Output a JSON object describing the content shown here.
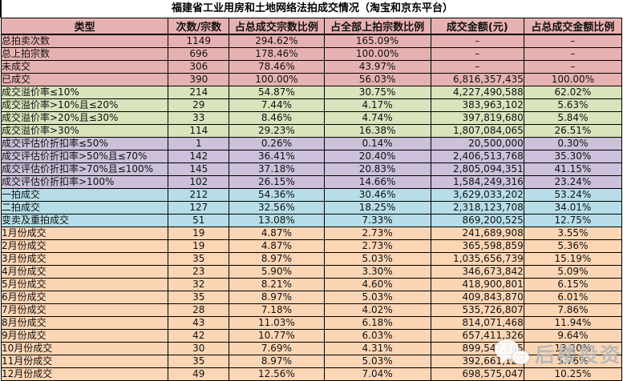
{
  "title": "福建省工业用房和土地网络法拍成交情况（淘宝和京东平台）",
  "table": {
    "columns": [
      "类型",
      "次数/宗数",
      "占总成交宗数比例",
      "占全部上拍宗数比例",
      "成交金额(元)",
      "占总成交金额比例"
    ],
    "rows": [
      {
        "label": "总拍卖次数",
        "count": "1149",
        "pct_of_deals": "294.62%",
        "pct_of_listed": "165.09%",
        "amount": "–",
        "pct_of_amount": "–",
        "group": "pink"
      },
      {
        "label": "总上拍宗数",
        "count": "696",
        "pct_of_deals": "178.46%",
        "pct_of_listed": "100.00%",
        "amount": "–",
        "pct_of_amount": "–",
        "group": "pink"
      },
      {
        "label": "未成交",
        "count": "306",
        "pct_of_deals": "78.46%",
        "pct_of_listed": "43.97%",
        "amount": "–",
        "pct_of_amount": "–",
        "group": "pink"
      },
      {
        "label": "已成交",
        "count": "390",
        "pct_of_deals": "100.00%",
        "pct_of_listed": "56.03%",
        "amount": "6,816,357,435",
        "pct_of_amount": "100.00%",
        "group": "pink"
      },
      {
        "label": "成交溢价率≤10%",
        "count": "214",
        "pct_of_deals": "54.87%",
        "pct_of_listed": "30.75%",
        "amount": "4,227,490,588",
        "pct_of_amount": "62.02%",
        "group": "green"
      },
      {
        "label": "成交溢价率>10%且≤20%",
        "count": "29",
        "pct_of_deals": "7.44%",
        "pct_of_listed": "4.17%",
        "amount": "383,963,102",
        "pct_of_amount": "5.63%",
        "group": "green"
      },
      {
        "label": "成交溢价率>20%且≤30%",
        "count": "33",
        "pct_of_deals": "8.46%",
        "pct_of_listed": "4.74%",
        "amount": "397,819,680",
        "pct_of_amount": "5.84%",
        "group": "green"
      },
      {
        "label": "成交溢价率>30%",
        "count": "114",
        "pct_of_deals": "29.23%",
        "pct_of_listed": "16.38%",
        "amount": "1,807,084,065",
        "pct_of_amount": "26.51%",
        "group": "green"
      },
      {
        "label": "成交评估价折扣率≤50%",
        "count": "1",
        "pct_of_deals": "0.26%",
        "pct_of_listed": "0.14%",
        "amount": "20,500,000",
        "pct_of_amount": "0.30%",
        "group": "purple"
      },
      {
        "label": "成交评估价折扣率>50%且≤70%",
        "count": "142",
        "pct_of_deals": "36.41%",
        "pct_of_listed": "20.40%",
        "amount": "2,406,513,768",
        "pct_of_amount": "35.30%",
        "group": "purple"
      },
      {
        "label": "成交评估价折扣率>70%且≤100%",
        "count": "145",
        "pct_of_deals": "37.18%",
        "pct_of_listed": "20.83%",
        "amount": "2,805,094,351",
        "pct_of_amount": "41.15%",
        "group": "purple"
      },
      {
        "label": "成交评估价折扣率>100%",
        "count": "102",
        "pct_of_deals": "26.15%",
        "pct_of_listed": "14.66%",
        "amount": "1,584,249,316",
        "pct_of_amount": "23.24%",
        "group": "purple"
      },
      {
        "label": "一拍成交",
        "count": "212",
        "pct_of_deals": "54.36%",
        "pct_of_listed": "30.46%",
        "amount": "3,629,033,202",
        "pct_of_amount": "53.24%",
        "group": "blue"
      },
      {
        "label": "二拍成交",
        "count": "127",
        "pct_of_deals": "32.56%",
        "pct_of_listed": "18.25%",
        "amount": "2,318,123,708",
        "pct_of_amount": "34.01%",
        "group": "blue"
      },
      {
        "label": "变卖及重拍成交",
        "count": "51",
        "pct_of_deals": "13.08%",
        "pct_of_listed": "7.33%",
        "amount": "869,200,525",
        "pct_of_amount": "12.75%",
        "group": "blue"
      },
      {
        "label": "1月份成交",
        "count": "19",
        "pct_of_deals": "4.87%",
        "pct_of_listed": "2.73%",
        "amount": "241,689,908",
        "pct_of_amount": "3.55%",
        "group": "peach"
      },
      {
        "label": "2月份成交",
        "count": "19",
        "pct_of_deals": "4.87%",
        "pct_of_listed": "2.73%",
        "amount": "365,598,859",
        "pct_of_amount": "5.36%",
        "group": "peach"
      },
      {
        "label": "3月份成交",
        "count": "35",
        "pct_of_deals": "8.97%",
        "pct_of_listed": "5.03%",
        "amount": "1,035,656,739",
        "pct_of_amount": "15.19%",
        "group": "peach"
      },
      {
        "label": "4月份成交",
        "count": "23",
        "pct_of_deals": "5.90%",
        "pct_of_listed": "3.30%",
        "amount": "346,673,842",
        "pct_of_amount": "5.09%",
        "group": "peach"
      },
      {
        "label": "5月份成交",
        "count": "32",
        "pct_of_deals": "8.21%",
        "pct_of_listed": "4.60%",
        "amount": "418,900,801",
        "pct_of_amount": "6.15%",
        "group": "peach"
      },
      {
        "label": "6月份成交",
        "count": "35",
        "pct_of_deals": "8.97%",
        "pct_of_listed": "5.03%",
        "amount": "409,843,870",
        "pct_of_amount": "6.01%",
        "group": "peach"
      },
      {
        "label": "7月份成交",
        "count": "28",
        "pct_of_deals": "7.18%",
        "pct_of_listed": "4.02%",
        "amount": "535,726,807",
        "pct_of_amount": "7.86%",
        "group": "peach"
      },
      {
        "label": "8月份成交",
        "count": "43",
        "pct_of_deals": "11.03%",
        "pct_of_listed": "6.18%",
        "amount": "814,071,468",
        "pct_of_amount": "11.94%",
        "group": "peach"
      },
      {
        "label": "9月份成交",
        "count": "42",
        "pct_of_deals": "10.77%",
        "pct_of_listed": "6.03%",
        "amount": "657,411,326",
        "pct_of_amount": "9.64%",
        "group": "peach"
      },
      {
        "label": "10月份成交",
        "count": "30",
        "pct_of_deals": "7.69%",
        "pct_of_listed": "4.31%",
        "amount": "899,547,645",
        "pct_of_amount": "13.20%",
        "group": "peach"
      },
      {
        "label": "11月份成交",
        "count": "35",
        "pct_of_deals": "8.97%",
        "pct_of_listed": "5.03%",
        "amount": "392,661,123",
        "pct_of_amount": "5.76%",
        "group": "peach"
      },
      {
        "label": "12月份成交",
        "count": "49",
        "pct_of_deals": "12.56%",
        "pct_of_listed": "7.04%",
        "amount": "698,575,047",
        "pct_of_amount": "10.25%",
        "group": "peach"
      }
    ]
  },
  "watermark": {
    "text": "后楼投资",
    "icon": "wechat-icon"
  },
  "colors": {
    "pink": "#E6B2B1",
    "green": "#D8E4BC",
    "purple": "#CCC0DA",
    "blue": "#B7DEE8",
    "peach": "#FCD5B4",
    "border": "#000000",
    "background": "#FFFFFF"
  }
}
